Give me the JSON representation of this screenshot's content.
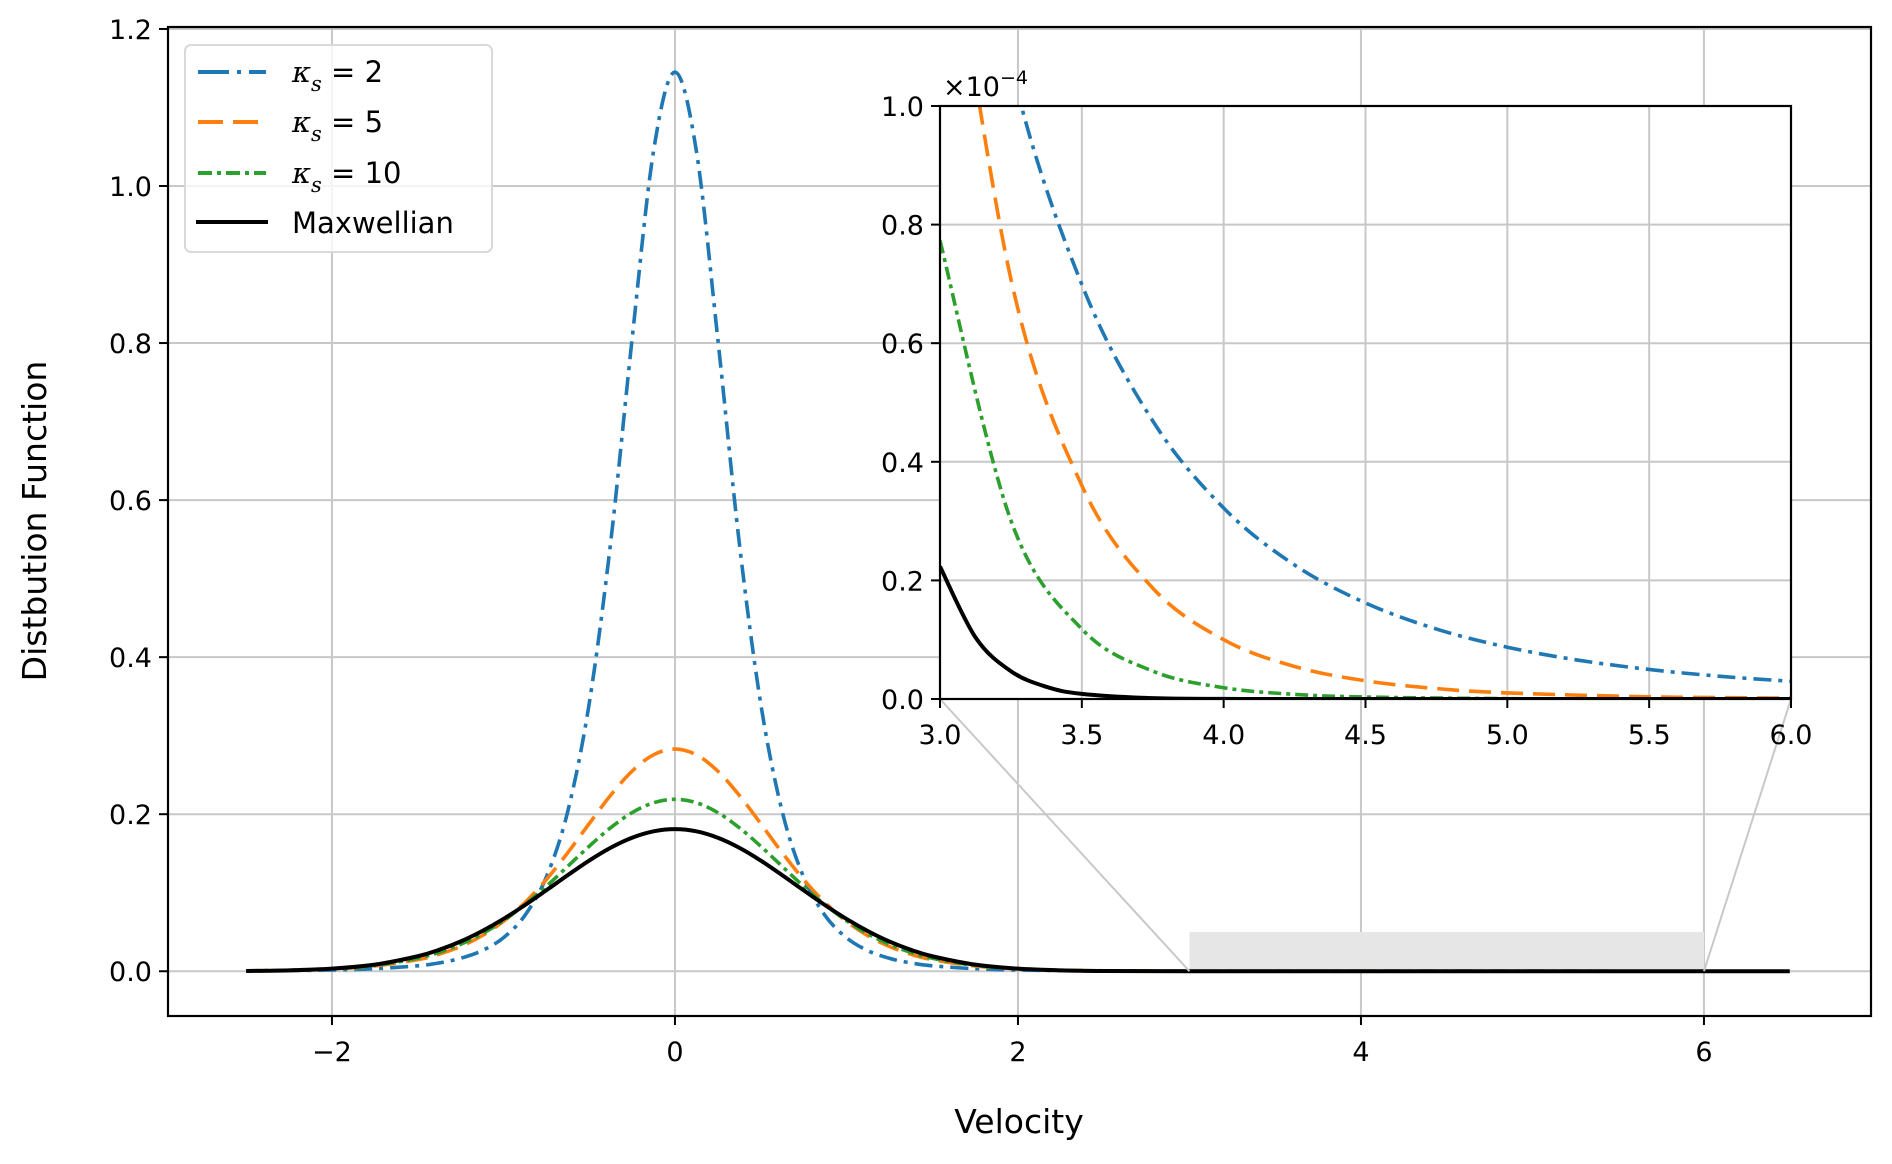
{
  "chart_data": {
    "type": "line",
    "title": "",
    "xlabel": "Velocity",
    "ylabel": "Distbution Function",
    "xlim": [
      -2.956,
      6.974
    ],
    "ylim": [
      -0.057,
      1.2025
    ],
    "grid": true,
    "legend_position": "top-left",
    "xticks": [
      -2,
      0,
      2,
      4,
      6
    ],
    "xtick_labels": [
      "−2",
      "0",
      "2",
      "4",
      "6"
    ],
    "yticks": [
      0.0,
      0.2,
      0.4,
      0.6,
      0.8,
      1.0,
      1.2
    ],
    "ytick_labels": [
      "0.0",
      "0.2",
      "0.4",
      "0.6",
      "0.8",
      "1.0",
      "1.2"
    ],
    "series": [
      {
        "name": "κ_s = 2",
        "legend_kappa": "2",
        "color": "#1f77b4",
        "linestyle": "dashdot",
        "x": [
          -2.5,
          -2.25,
          -2.0,
          -1.75,
          -1.5,
          -1.375,
          -1.25,
          -1.125,
          -1.0,
          -0.875,
          -0.75,
          -0.625,
          -0.5,
          -0.375,
          -0.25,
          -0.125,
          0,
          0.125,
          0.25,
          0.375,
          0.5,
          0.625,
          0.75,
          0.875,
          1.0,
          1.125,
          1.25,
          1.375,
          1.5,
          1.75,
          2.0,
          2.25,
          2.5,
          3.0,
          4.0,
          5.0,
          6.0,
          6.5
        ],
        "y": [
          0.00047,
          0.00085,
          0.00159,
          0.0032,
          0.00695,
          0.0106,
          0.0165,
          0.0262,
          0.0427,
          0.0711,
          0.12,
          0.2037,
          0.341,
          0.5458,
          0.805,
          1.0444,
          1.145,
          1.0444,
          0.805,
          0.5458,
          0.341,
          0.2037,
          0.12,
          0.0711,
          0.0427,
          0.0262,
          0.0165,
          0.0106,
          0.00695,
          0.0032,
          0.00159,
          0.00085,
          0.00047,
          0.00017,
          3e-05,
          1e-05,
          0.0,
          0.0
        ]
      },
      {
        "name": "κ_s = 5",
        "legend_kappa": "5",
        "color": "#ff7f0e",
        "linestyle": "dashed",
        "x": [
          -2.5,
          -2.25,
          -2.0,
          -1.75,
          -1.5,
          -1.375,
          -1.25,
          -1.125,
          -1.0,
          -0.875,
          -0.75,
          -0.625,
          -0.5,
          -0.375,
          -0.25,
          -0.125,
          0,
          0.125,
          0.25,
          0.375,
          0.5,
          0.625,
          0.75,
          0.875,
          1.0,
          1.125,
          1.25,
          1.375,
          1.5,
          1.75,
          2.0,
          2.25,
          2.5,
          3.0,
          4.0,
          5.0,
          6.0,
          6.5
        ],
        "y": [
          0.0006,
          0.0014,
          0.003,
          0.0068,
          0.0148,
          0.0217,
          0.0316,
          0.0452,
          0.0635,
          0.0874,
          0.1168,
          0.151,
          0.188,
          0.2241,
          0.2548,
          0.2756,
          0.283,
          0.2756,
          0.2548,
          0.2241,
          0.188,
          0.151,
          0.1168,
          0.0874,
          0.0635,
          0.0452,
          0.0316,
          0.0217,
          0.0148,
          0.0068,
          0.003,
          0.0014,
          0.0006,
          0.00014,
          1e-05,
          0.0,
          0.0,
          0.0
        ]
      },
      {
        "name": "κ_s = 10",
        "legend_kappa": "10",
        "color": "#2ca02c",
        "linestyle": "dashdotdot",
        "x": [
          -2.5,
          -2.25,
          -2.0,
          -1.75,
          -1.5,
          -1.375,
          -1.25,
          -1.125,
          -1.0,
          -0.875,
          -0.75,
          -0.625,
          -0.5,
          -0.375,
          -0.25,
          -0.125,
          0,
          0.125,
          0.25,
          0.375,
          0.5,
          0.625,
          0.75,
          0.875,
          1.0,
          1.125,
          1.25,
          1.375,
          1.5,
          1.75,
          2.0,
          2.25,
          2.5,
          3.0,
          4.0,
          5.0,
          6.0,
          6.5
        ],
        "y": [
          0.0005,
          0.0013,
          0.0031,
          0.0074,
          0.0165,
          0.0241,
          0.0343,
          0.0475,
          0.0644,
          0.0848,
          0.1082,
          0.1336,
          0.1592,
          0.1828,
          0.202,
          0.2146,
          0.219,
          0.2146,
          0.202,
          0.1828,
          0.1592,
          0.1336,
          0.1082,
          0.0848,
          0.0644,
          0.0475,
          0.0343,
          0.0241,
          0.0165,
          0.0074,
          0.0031,
          0.0013,
          0.0005,
          8e-05,
          0.0,
          0.0,
          0.0,
          0.0
        ]
      },
      {
        "name": "Maxwellian",
        "legend_label": "Maxwellian",
        "color": "#000000",
        "linestyle": "solid",
        "x": [
          -2.5,
          -2.25,
          -2.0,
          -1.75,
          -1.5,
          -1.375,
          -1.25,
          -1.125,
          -1.0,
          -0.875,
          -0.75,
          -0.625,
          -0.5,
          -0.375,
          -0.25,
          -0.125,
          0,
          0.125,
          0.25,
          0.375,
          0.5,
          0.625,
          0.75,
          0.875,
          1.0,
          1.125,
          1.25,
          1.375,
          1.5,
          1.75,
          2.0,
          2.25,
          2.5,
          3.0,
          4.0,
          5.0,
          6.0,
          6.5
        ],
        "y": [
          0.0003,
          0.0011,
          0.0033,
          0.0084,
          0.0191,
          0.0273,
          0.0379,
          0.0511,
          0.0666,
          0.0842,
          0.1031,
          0.1224,
          0.141,
          0.1573,
          0.17,
          0.1782,
          0.181,
          0.1782,
          0.17,
          0.1573,
          0.141,
          0.1224,
          0.1031,
          0.0842,
          0.0666,
          0.0511,
          0.0379,
          0.0273,
          0.0191,
          0.0084,
          0.0033,
          0.0011,
          0.0003,
          2e-05,
          0.0,
          0.0,
          0.0,
          0.0
        ]
      }
    ],
    "zoom_indicator": {
      "x_range": [
        3.0,
        6.0
      ],
      "y_range": [
        0.0,
        0.05
      ],
      "color": "#e6e6e6"
    },
    "inset": {
      "xlim": [
        3.0,
        6.0
      ],
      "ylim": [
        0.0,
        1.0
      ],
      "y_multiplier_label": "×10",
      "y_multiplier_exponent": "−4",
      "xticks": [
        3.0,
        3.5,
        4.0,
        4.5,
        5.0,
        5.5,
        6.0
      ],
      "xtick_labels": [
        "3.0",
        "3.5",
        "4.0",
        "4.5",
        "5.0",
        "5.5",
        "6.0"
      ],
      "yticks": [
        0.0,
        0.2,
        0.4,
        0.6,
        0.8,
        1.0
      ],
      "ytick_labels": [
        "0.0",
        "0.2",
        "0.4",
        "0.6",
        "0.8",
        "1.0"
      ],
      "units": "1e-4",
      "series": [
        {
          "name": "κ_s = 2",
          "x": [
            3.0,
            3.25,
            3.5,
            3.75,
            4.0,
            4.25,
            4.5,
            4.75,
            5.0,
            5.25,
            5.5,
            5.75,
            6.0
          ],
          "y": [
            1.688,
            1.069,
            0.699,
            0.469,
            0.322,
            0.226,
            0.162,
            0.118,
            0.0873,
            0.0655,
            0.0498,
            0.0383,
            0.0298
          ]
        },
        {
          "name": "κ_s = 5",
          "x": [
            3.0,
            3.25,
            3.5,
            3.75,
            4.0,
            4.25,
            4.5,
            4.75,
            5.0,
            5.5,
            6.0
          ],
          "y": [
            1.432,
            0.708,
            0.36,
            0.187,
            0.1,
            0.0548,
            0.0307,
            0.0176,
            0.0103,
            0.0037,
            0.0015
          ]
        },
        {
          "name": "κ_s = 10",
          "x": [
            3.0,
            3.25,
            3.5,
            3.75,
            4.0,
            4.25,
            4.5,
            5.0,
            5.5,
            6.0
          ],
          "y": [
            0.773,
            0.301,
            0.118,
            0.047,
            0.019,
            0.0078,
            0.0033,
            0.0006,
            0.0001,
            0.0
          ]
        },
        {
          "name": "Maxwellian",
          "x": [
            3.0,
            3.125,
            3.25,
            3.375,
            3.5,
            3.75,
            4.0,
            4.25,
            5.0,
            6.0
          ],
          "y": [
            0.2234,
            0.104,
            0.0468,
            0.0205,
            0.0087,
            0.0014,
            0.0002,
            0.0,
            0.0,
            0.0
          ]
        }
      ]
    }
  }
}
